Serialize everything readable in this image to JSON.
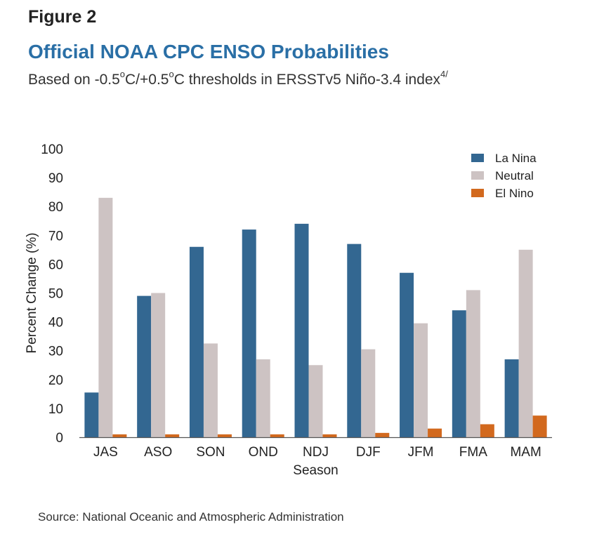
{
  "header": {
    "figure_label": "Figure 2",
    "title": "Official NOAA CPC ENSO Probabilities",
    "subtitle_prefix": "Based on -0.5",
    "subtitle_sup1": "o",
    "subtitle_mid": "C/+0.5",
    "subtitle_sup2": "o",
    "subtitle_tail": "C thresholds in ERSSTv5 Niño-3.4 index",
    "subtitle_footnote": "4/"
  },
  "footer": {
    "source": "Source: National Oceanic and Atmospheric Administration"
  },
  "chart_data": {
    "type": "bar",
    "xlabel": "Season",
    "ylabel": "Percent Change (%)",
    "ylim": [
      0,
      100
    ],
    "yticks": [
      0,
      10,
      20,
      30,
      40,
      50,
      60,
      70,
      80,
      90,
      100
    ],
    "grid": false,
    "legend_position": "top-right",
    "categories": [
      "JAS",
      "ASO",
      "SON",
      "OND",
      "NDJ",
      "DJF",
      "JFM",
      "FMA",
      "MAM"
    ],
    "series": [
      {
        "name": "La Nina",
        "color": "#336791",
        "values": [
          15.5,
          49,
          66,
          72,
          74,
          67,
          57,
          44,
          27
        ]
      },
      {
        "name": "Neutral",
        "color": "#cdc3c3",
        "values": [
          83,
          50,
          32.5,
          27,
          25,
          30.5,
          39.5,
          51,
          65
        ]
      },
      {
        "name": "El Nino",
        "color": "#d2691e",
        "values": [
          1,
          1,
          1,
          1,
          1,
          1.5,
          3,
          4.5,
          7.5
        ]
      }
    ]
  }
}
